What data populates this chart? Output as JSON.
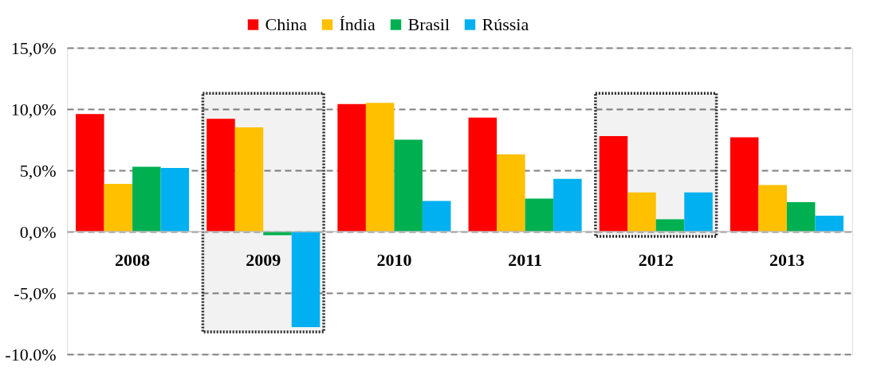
{
  "chart_data": {
    "type": "bar",
    "categories": [
      "2008",
      "2009",
      "2010",
      "2011",
      "2012",
      "2013"
    ],
    "series": [
      {
        "name": "China",
        "color": "#ff0000",
        "values": [
          9.6,
          9.2,
          10.4,
          9.3,
          7.8,
          7.7
        ]
      },
      {
        "name": "Índia",
        "color": "#ffc000",
        "values": [
          3.9,
          8.5,
          10.5,
          6.3,
          3.2,
          3.8
        ]
      },
      {
        "name": "Brasil",
        "color": "#00b050",
        "values": [
          5.3,
          -0.3,
          7.5,
          2.7,
          1.0,
          2.4
        ]
      },
      {
        "name": "Rússia",
        "color": "#00b0f0",
        "values": [
          5.2,
          -7.8,
          2.5,
          4.3,
          3.2,
          1.3
        ]
      }
    ],
    "ylim": [
      -10,
      15
    ],
    "yticks": [
      {
        "value": -10,
        "label": "-10.0%"
      },
      {
        "value": -5,
        "label": "-5,0%"
      },
      {
        "value": 0,
        "label": "0,0%"
      },
      {
        "value": 5,
        "label": "5,0%"
      },
      {
        "value": 10,
        "label": "10,0%"
      },
      {
        "value": 15,
        "label": "15,0%"
      }
    ],
    "grid": "y",
    "legend": "top",
    "bands": [
      {
        "axis": "x",
        "from": "2009",
        "to": "2009",
        "color": "#262626"
      },
      {
        "axis": "x",
        "from": "2012",
        "to": "2012",
        "color": "#262626"
      }
    ]
  }
}
